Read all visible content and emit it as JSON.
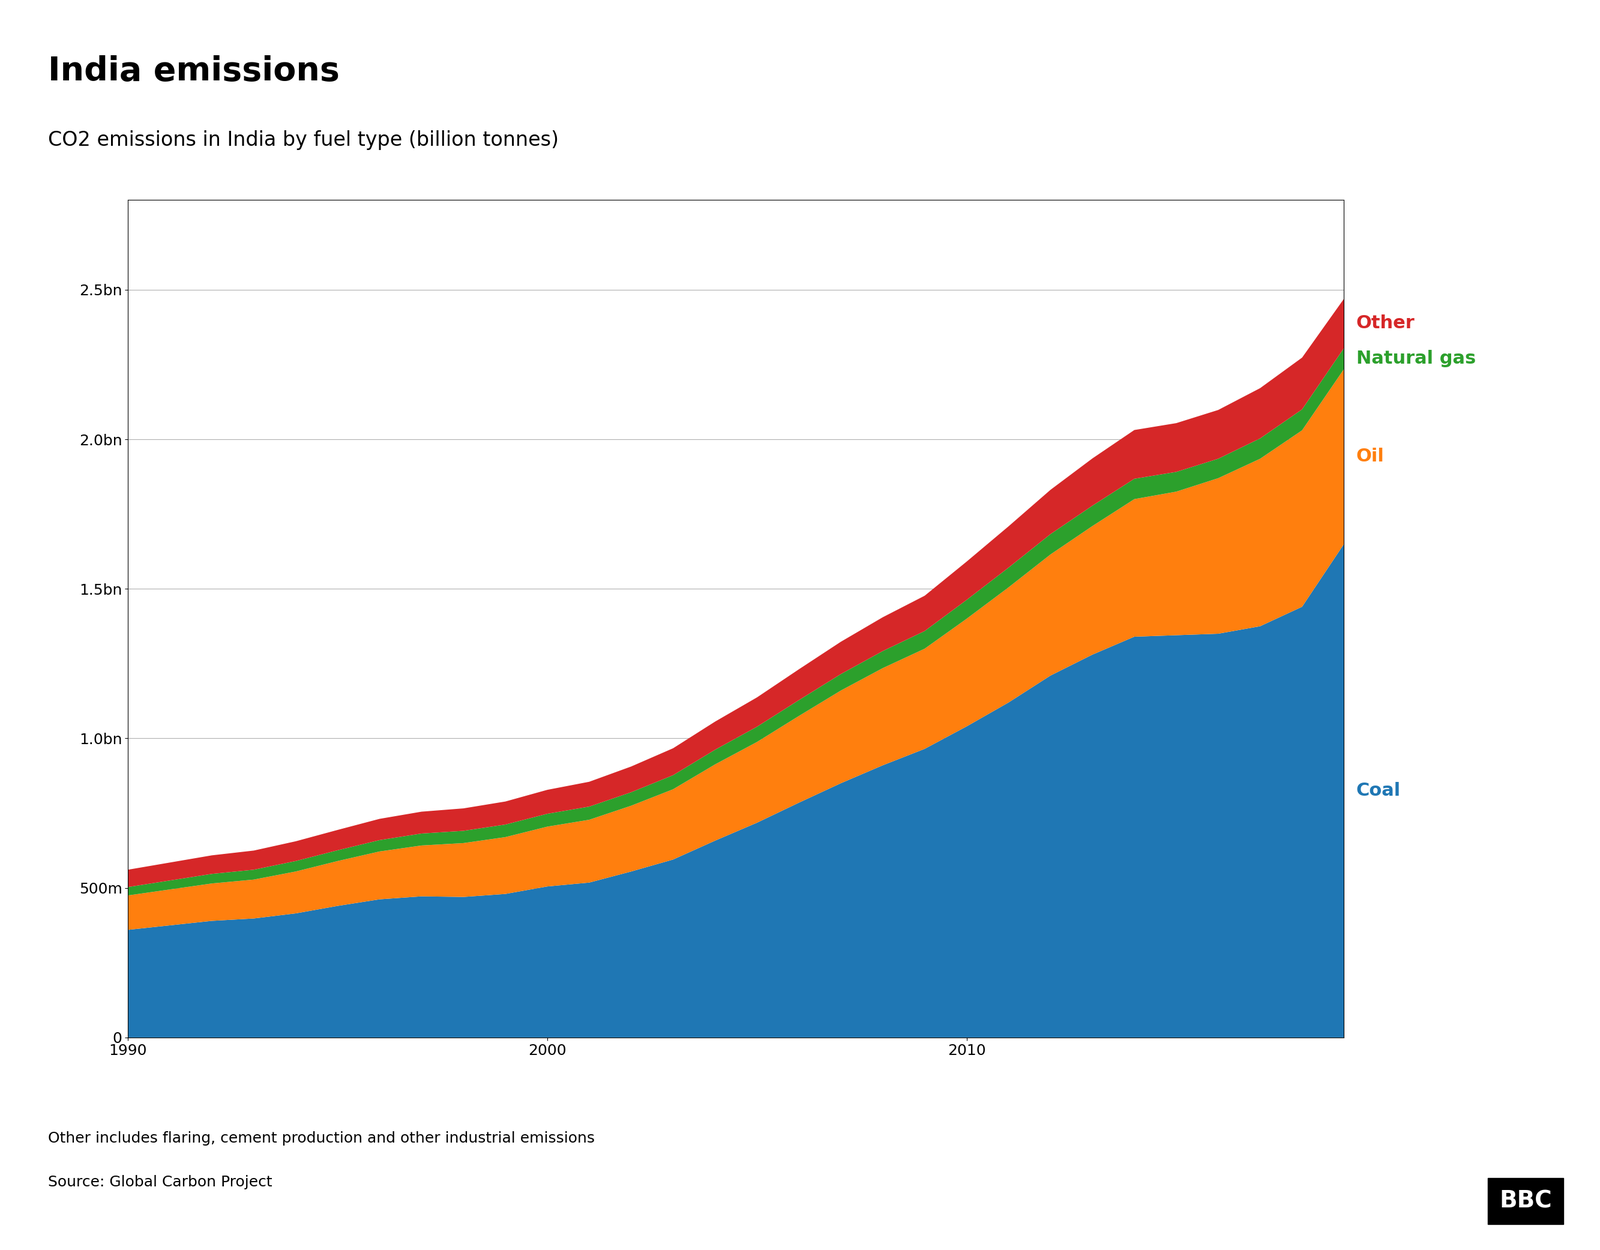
{
  "chart_data": {
    "type": "area",
    "stacked": true,
    "title": "India emissions",
    "subtitle": "CO2 emissions in India by fuel type (billion tonnes)",
    "footnote": "Other includes flaring, cement production and other industrial emissions",
    "source": "Source: Global Carbon Project",
    "annotations": [
      "BBC"
    ],
    "x": [
      1990,
      1991,
      1992,
      1993,
      1994,
      1995,
      1996,
      1997,
      1998,
      1999,
      2000,
      2001,
      2002,
      2003,
      2004,
      2005,
      2006,
      2007,
      2008,
      2009,
      2010,
      2011,
      2012,
      2013,
      2014,
      2015,
      2016,
      2017,
      2018,
      2019
    ],
    "series": [
      {
        "name": "Coal",
        "values": [
          0.36,
          0.375,
          0.39,
          0.398,
          0.415,
          0.44,
          0.462,
          0.472,
          0.47,
          0.48,
          0.505,
          0.518,
          0.555,
          0.595,
          0.658,
          0.718,
          0.785,
          0.85,
          0.91,
          0.965,
          1.04,
          1.12,
          1.21,
          1.28,
          1.34,
          1.345,
          1.35,
          1.375,
          1.44,
          1.65
        ]
      },
      {
        "name": "Oil",
        "values": [
          0.115,
          0.12,
          0.125,
          0.13,
          0.14,
          0.15,
          0.16,
          0.17,
          0.18,
          0.19,
          0.2,
          0.21,
          0.22,
          0.235,
          0.255,
          0.27,
          0.29,
          0.31,
          0.325,
          0.335,
          0.36,
          0.385,
          0.405,
          0.43,
          0.46,
          0.48,
          0.52,
          0.56,
          0.59,
          0.585
        ]
      },
      {
        "name": "Natural gas",
        "values": [
          0.028,
          0.03,
          0.032,
          0.033,
          0.035,
          0.036,
          0.038,
          0.04,
          0.041,
          0.042,
          0.043,
          0.044,
          0.045,
          0.047,
          0.049,
          0.051,
          0.053,
          0.055,
          0.057,
          0.059,
          0.063,
          0.066,
          0.068,
          0.068,
          0.068,
          0.066,
          0.065,
          0.068,
          0.07,
          0.07
        ]
      },
      {
        "name": "Other",
        "values": [
          0.058,
          0.06,
          0.062,
          0.064,
          0.066,
          0.068,
          0.071,
          0.073,
          0.075,
          0.077,
          0.08,
          0.083,
          0.086,
          0.09,
          0.094,
          0.098,
          0.103,
          0.108,
          0.113,
          0.118,
          0.128,
          0.138,
          0.148,
          0.158,
          0.163,
          0.163,
          0.163,
          0.168,
          0.173,
          0.165
        ]
      }
    ],
    "xlim": [
      1990,
      2019
    ],
    "xticks": [
      1990,
      2000,
      2010
    ],
    "ylim": [
      0,
      2.8
    ],
    "yticks": [
      0,
      {
        "value": 0.5,
        "label": "500m"
      },
      {
        "value": 1.0,
        "label": "1.0bn"
      },
      {
        "value": 1.5,
        "label": "1.5bn"
      },
      {
        "value": 2.0,
        "label": "2.0bn"
      },
      {
        "value": 2.5,
        "label": "2.5bn"
      }
    ],
    "grid": "y"
  }
}
